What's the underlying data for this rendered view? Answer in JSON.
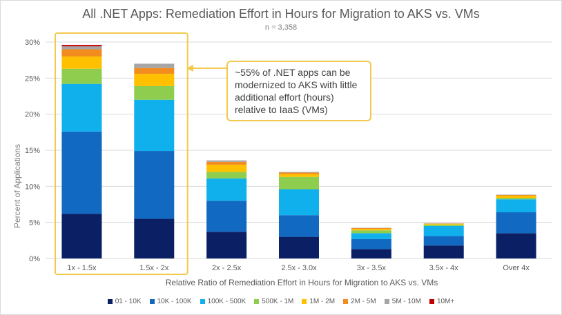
{
  "chart_data": {
    "type": "bar",
    "stacked": true,
    "title": "All .NET Apps: Remediation Effort in Hours  for Migration to AKS vs. VMs",
    "subtitle": "n = 3,358",
    "xlabel": "Relative Ratio of Remediation Effort in Hours for Migration to AKS vs. VMs",
    "ylabel": "Percent of Applications",
    "ylim": [
      0,
      30
    ],
    "yticks": [
      "0%",
      "5%",
      "10%",
      "15%",
      "20%",
      "25%",
      "30%"
    ],
    "categories": [
      "1x - 1.5x",
      "1.5x - 2x",
      "2x - 2.5x",
      "2.5x - 3.0x",
      "3x - 3.5x",
      "3.5x - 4x",
      "Over 4x"
    ],
    "series": [
      {
        "name": "01 - 10K",
        "color": "#0b1f65",
        "values": [
          6.2,
          5.5,
          3.7,
          3.0,
          1.3,
          1.8,
          3.5
        ]
      },
      {
        "name": "10K - 100K",
        "color": "#1169c1",
        "values": [
          11.4,
          9.4,
          4.3,
          3.0,
          1.4,
          1.3,
          2.9
        ]
      },
      {
        "name": "100K - 500K",
        "color": "#10b0ec",
        "values": [
          6.6,
          7.1,
          3.1,
          3.6,
          0.8,
          1.4,
          1.8
        ]
      },
      {
        "name": "500K - 1M",
        "color": "#8fcd4f",
        "values": [
          2.1,
          1.9,
          0.9,
          1.7,
          0.4,
          0.2,
          0.2
        ]
      },
      {
        "name": "1M - 2M",
        "color": "#ffc000",
        "values": [
          1.7,
          1.7,
          1.0,
          0.4,
          0.2,
          0.1,
          0.3
        ]
      },
      {
        "name": "2M - 5M",
        "color": "#f28c1f",
        "values": [
          1.0,
          0.8,
          0.4,
          0.2,
          0.1,
          0.05,
          0.1
        ]
      },
      {
        "name": "5M - 10M",
        "color": "#a6a6a6",
        "values": [
          0.4,
          0.6,
          0.2,
          0.1,
          0.05,
          0.05,
          0.05
        ]
      },
      {
        "name": "10M+",
        "color": "#c00000",
        "values": [
          0.2,
          0.0,
          0.0,
          0.0,
          0.0,
          0.0,
          0.0
        ]
      }
    ],
    "grid": true,
    "legend_position": "bottom",
    "highlight_color": "#f2c94c",
    "highlight_categories": [
      "1x - 1.5x",
      "1.5x - 2x"
    ],
    "annotation": "~55% of .NET apps can be modernized to AKS with little additional effort (hours) relative to IaaS (VMs)"
  }
}
